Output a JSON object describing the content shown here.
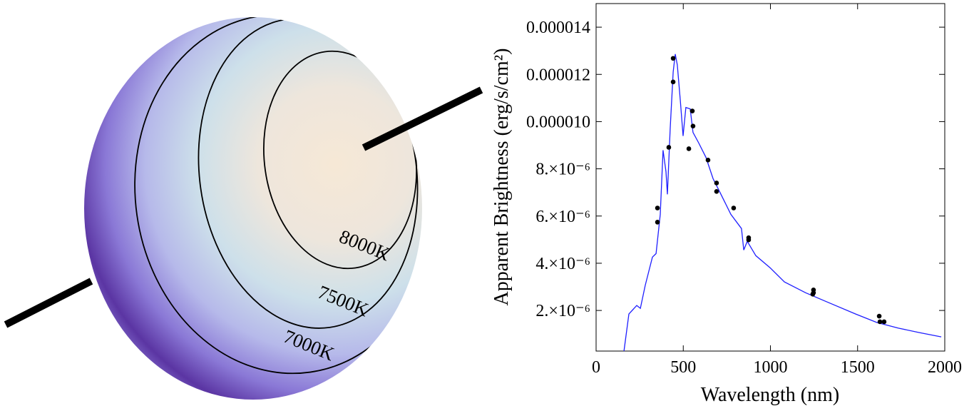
{
  "illustration": {
    "contour_labels": [
      "8000K",
      "7500K",
      "7000K"
    ]
  },
  "chart_data": {
    "type": "line",
    "x_label": "Wavelength (nm)",
    "y_label": "Apparent Brightness (erg/s/cm²)",
    "xlim": [
      0,
      2000
    ],
    "ylim": [
      2.8e-07,
      1.5e-05
    ],
    "xticks": [
      0,
      500,
      1000,
      1500,
      2000
    ],
    "yticks": [
      {
        "value": 2e-06,
        "label": "2.×10⁻⁶"
      },
      {
        "value": 4e-06,
        "label": "4.×10⁻⁶"
      },
      {
        "value": 6e-06,
        "label": "6.×10⁻⁶"
      },
      {
        "value": 8e-06,
        "label": "8.×10⁻⁶"
      },
      {
        "value": 1e-05,
        "label": "0.000010"
      },
      1.2e-05,
      1.4e-05
    ],
    "grid": false,
    "series": [
      {
        "type": "line",
        "color": "#1f1fff",
        "x": [
          160,
          188,
          233,
          254,
          282,
          323,
          344,
          368,
          384,
          401,
          409,
          425,
          442,
          454,
          466,
          483,
          499,
          515,
          540,
          556,
          589,
          630,
          671,
          712,
          773,
          834,
          847,
          867,
          916,
          998,
          1080,
          1202,
          1325,
          1489,
          1611,
          1734,
          1857,
          1980
        ],
        "values": [
          2.8e-07,
          1.85e-06,
          2.21e-06,
          2.09e-06,
          3.06e-06,
          4.26e-06,
          4.41e-06,
          6.07e-06,
          8.79e-06,
          7.88e-06,
          6.92e-06,
          9.69e-06,
          1.21e-05,
          1.286e-05,
          1.24e-05,
          1.09e-05,
          9.39e-06,
          1.06e-05,
          1.054e-05,
          9.54e-06,
          9.09e-06,
          8.49e-06,
          7.58e-06,
          6.98e-06,
          6.07e-06,
          5.47e-06,
          4.56e-06,
          4.93e-06,
          4.32e-06,
          3.81e-06,
          3.21e-06,
          2.75e-06,
          2.36e-06,
          1.85e-06,
          1.49e-06,
          1.25e-06,
          1.06e-06,
          8.8e-07
        ]
      },
      {
        "type": "scatter",
        "color": "#000000",
        "x": [
          352,
          352,
          417,
          442,
          442,
          532,
          552,
          556,
          642,
          691,
          691,
          789,
          875,
          875,
          1247,
          1247,
          1243,
          1624,
          1628,
          1652
        ],
        "values": [
          6.34e-06,
          5.74e-06,
          8.91e-06,
          1.268e-05,
          1.168e-05,
          8.85e-06,
          1.045e-05,
          9.81e-06,
          8.37e-06,
          7.4e-06,
          7.04e-06,
          6.34e-06,
          5.08e-06,
          4.99e-06,
          2.87e-06,
          2.75e-06,
          2.69e-06,
          1.76e-06,
          1.52e-06,
          1.52e-06
        ]
      }
    ]
  }
}
